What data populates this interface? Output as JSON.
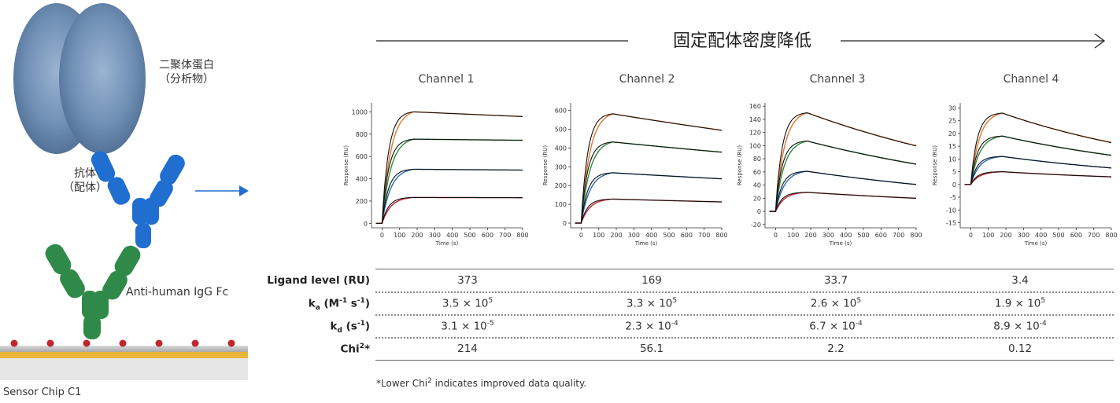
{
  "schematic": {
    "analyte_label_line1": "二聚体蛋白",
    "analyte_label_line2": "（分析物）",
    "ligand_label_line1": "抗体",
    "ligand_label_line2": "（配体）",
    "capture_label": "Anti-human IgG Fc",
    "chip_label": "Sensor Chip C1"
  },
  "trend_title": "固定配体密度降低",
  "colors": {
    "orange": "#e8742a",
    "green": "#2e8b3a",
    "blue": "#2a6ab4",
    "red": "#c0262e",
    "fit": "#111111",
    "antibody": "#1f6ed0",
    "capture": "#2f8a4a",
    "analyte": "#6f8fb4"
  },
  "chart_data": [
    {
      "type": "line",
      "title": "Channel 1",
      "xlabel": "Time (s)",
      "ylabel": "Response (RU)",
      "xlim": [
        -60,
        800
      ],
      "ylim": [
        -40,
        1080
      ],
      "xticks": [
        "0",
        "100",
        "200",
        "300",
        "400",
        "500",
        "600",
        "700",
        "800"
      ],
      "yticks": [
        "0",
        "200",
        "400",
        "600",
        "800",
        "1000"
      ],
      "yticks_values": [
        0,
        200,
        400,
        600,
        800,
        1000
      ],
      "series": [
        {
          "color": "orange",
          "peak": 1000,
          "end": 958
        },
        {
          "color": "green",
          "peak": 755,
          "end": 745
        },
        {
          "color": "blue",
          "peak": 485,
          "end": 478
        },
        {
          "color": "red",
          "peak": 232,
          "end": 230
        }
      ]
    },
    {
      "type": "line",
      "title": "Channel 2",
      "xlabel": "Time (s)",
      "ylabel": "Response (RU)",
      "xlim": [
        -60,
        800
      ],
      "ylim": [
        -25,
        640
      ],
      "xticks": [
        "0",
        "100",
        "200",
        "300",
        "400",
        "500",
        "600",
        "700",
        "800"
      ],
      "yticks": [
        "0",
        "100",
        "200",
        "300",
        "400",
        "500",
        "600"
      ],
      "yticks_values": [
        0,
        100,
        200,
        300,
        400,
        500,
        600
      ],
      "series": [
        {
          "color": "orange",
          "peak": 582,
          "end": 495
        },
        {
          "color": "green",
          "peak": 432,
          "end": 378
        },
        {
          "color": "blue",
          "peak": 268,
          "end": 236
        },
        {
          "color": "red",
          "peak": 128,
          "end": 113
        }
      ]
    },
    {
      "type": "line",
      "title": "Channel 3",
      "xlabel": "Time (s)",
      "ylabel": "Response (RU)",
      "xlim": [
        -60,
        800
      ],
      "ylim": [
        -25,
        165
      ],
      "xticks": [
        "0",
        "100",
        "200",
        "300",
        "400",
        "500",
        "600",
        "700",
        "800"
      ],
      "yticks": [
        "-20",
        "0",
        "20",
        "40",
        "60",
        "80",
        "100",
        "120",
        "140",
        "160"
      ],
      "yticks_values": [
        -20,
        0,
        20,
        40,
        60,
        80,
        100,
        120,
        140,
        160
      ],
      "series": [
        {
          "color": "orange",
          "peak": 150,
          "end": 100
        },
        {
          "color": "green",
          "peak": 107,
          "end": 72
        },
        {
          "color": "blue",
          "peak": 61,
          "end": 41
        },
        {
          "color": "red",
          "peak": 29,
          "end": 20
        }
      ]
    },
    {
      "type": "line",
      "title": "Channel 4",
      "xlabel": "Time (s)",
      "ylabel": "Response (RU)",
      "xlim": [
        -60,
        800
      ],
      "ylim": [
        -17,
        32
      ],
      "xticks": [
        "0",
        "100",
        "200",
        "300",
        "400",
        "500",
        "600",
        "700",
        "800"
      ],
      "yticks": [
        "-15",
        "-10",
        "-5",
        "0",
        "5",
        "10",
        "15",
        "20",
        "25",
        "30"
      ],
      "yticks_values": [
        -15,
        -10,
        -5,
        0,
        5,
        10,
        15,
        20,
        25,
        30
      ],
      "series": [
        {
          "color": "orange",
          "peak": 28,
          "end": 16.5
        },
        {
          "color": "green",
          "peak": 19,
          "end": 11.5
        },
        {
          "color": "blue",
          "peak": 11,
          "end": 6.5
        },
        {
          "color": "red",
          "peak": 5,
          "end": 3
        }
      ]
    }
  ],
  "table": {
    "rows": [
      {
        "header": "Ligand level (RU)",
        "values": [
          "373",
          "169",
          "33.7",
          "3.4"
        ]
      },
      {
        "header_main": "k",
        "header_sub": "a",
        "header_tail": " (M",
        "header_sup1": "-1",
        "header_mid": " s",
        "header_sup2": "-1",
        "header_end": ")",
        "values": [
          {
            "mant": "3.5 × 10",
            "exp": "5"
          },
          {
            "mant": "3.3 × 10",
            "exp": "5"
          },
          {
            "mant": "2.6 × 10",
            "exp": "5"
          },
          {
            "mant": "1.9 × 10",
            "exp": "5"
          }
        ]
      },
      {
        "header_main": "k",
        "header_sub": "d",
        "header_tail": " (s",
        "header_sup1": "-1",
        "header_end": ")",
        "values": [
          {
            "mant": "3.1 × 10",
            "exp": "-5"
          },
          {
            "mant": "2.3 × 10",
            "exp": "-4"
          },
          {
            "mant": "6.7 × 10",
            "exp": "-4"
          },
          {
            "mant": "8.9 × 10",
            "exp": "-4"
          }
        ]
      },
      {
        "header_main": "Chi",
        "header_sup1": "2",
        "header_end": "*",
        "values": [
          "214",
          "56.1",
          "2.2",
          "0.12"
        ]
      }
    ]
  },
  "footnote": {
    "pre": "*Lower Chi",
    "sup": "2",
    "post": " indicates improved data quality."
  }
}
